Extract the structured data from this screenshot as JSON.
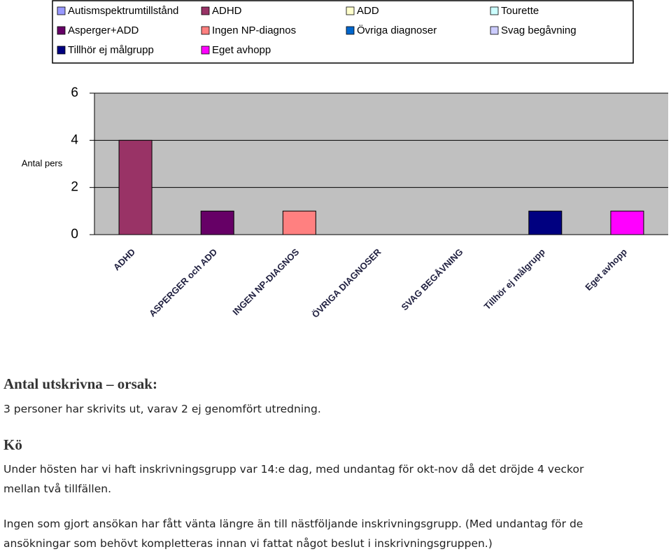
{
  "chart_data": {
    "type": "bar",
    "legend": [
      {
        "name": "Autismspektrumtillstånd",
        "color": "#9999ff"
      },
      {
        "name": "ADHD",
        "color": "#993366"
      },
      {
        "name": "ADD",
        "color": "#ffffcc"
      },
      {
        "name": "Tourette",
        "color": "#ccffff"
      },
      {
        "name": "Asperger+ADD",
        "color": "#660066"
      },
      {
        "name": "Ingen NP-diagnos",
        "color": "#ff8080"
      },
      {
        "name": "Övriga diagnoser",
        "color": "#0066cc"
      },
      {
        "name": "Svag begåvning",
        "color": "#ccccff"
      },
      {
        "name": "Tillhör ej målgrupp",
        "color": "#000080"
      },
      {
        "name": "Eget avhopp",
        "color": "#ff00ff"
      }
    ],
    "ylabel": "Antal pers",
    "categories": [
      "ADHD",
      "ASPERGER och ADD",
      "INGEN NP-DIAGNOS",
      "ÖVRIGA DIAGNOSER",
      "SVAG BEGÅVNING",
      "Tillhör ej målgrupp",
      "Eget avhopp"
    ],
    "values": [
      4,
      1,
      1,
      0,
      0,
      1,
      1
    ],
    "colors": [
      "#993366",
      "#660066",
      "#ff8080",
      "#0066cc",
      "#ccccff",
      "#000080",
      "#ff00ff"
    ],
    "ylim": [
      0,
      6
    ],
    "yticks": [
      0,
      2,
      4,
      6
    ],
    "grid": true
  },
  "document": {
    "heading1": "Antal utskrivna – orsak:",
    "para1": "3 personer har skrivits ut, varav 2 ej genomfört utredning.",
    "heading2": "Kö",
    "para2": "Under hösten har vi haft inskrivningsgrupp var 14:e dag, med undantag för okt-nov då det dröjde 4 veckor mellan två tillfällen.",
    "para3": "Ingen som gjort ansökan har fått vänta längre än till nästföljande inskrivningsgrupp. (Med undantag för de ansökningar som behövt kompletteras innan vi fattat något beslut i inskrivningsgruppen.)"
  }
}
